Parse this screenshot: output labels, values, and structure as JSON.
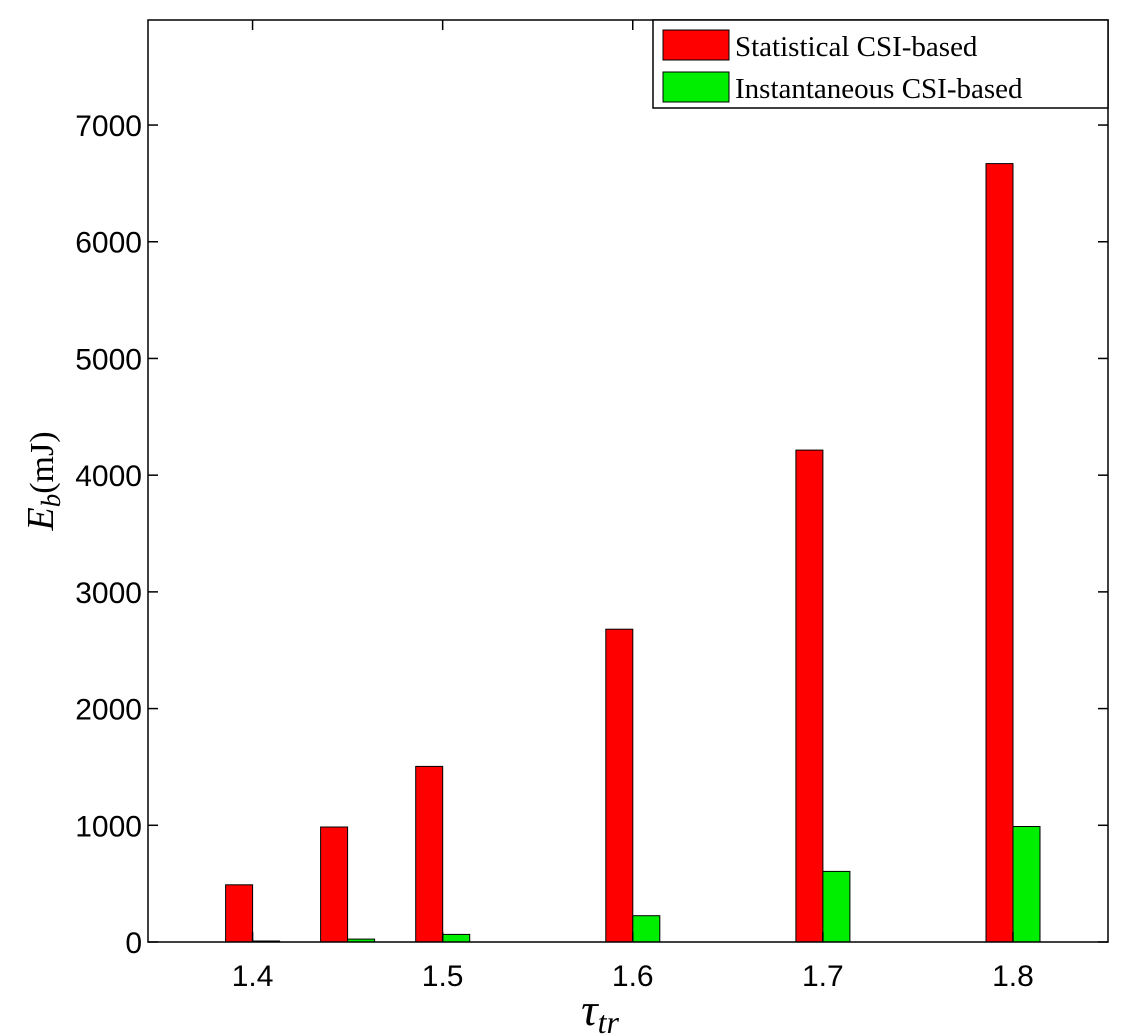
{
  "chart_data": {
    "type": "bar",
    "x_ticks": [
      1.4,
      1.5,
      1.6,
      1.7,
      1.8
    ],
    "x_tick_labels": [
      "1.4",
      "1.5",
      "1.6",
      "1.7",
      "1.8"
    ],
    "xlim": [
      1.345,
      1.85
    ],
    "ylim": [
      0,
      7900
    ],
    "y_ticks": [
      0,
      1000,
      2000,
      3000,
      4000,
      5000,
      6000,
      7000
    ],
    "y_tick_labels": [
      "0",
      "1000",
      "2000",
      "3000",
      "4000",
      "5000",
      "6000",
      "7000"
    ],
    "xlabel": {
      "main": "τ",
      "sub": "tr"
    },
    "ylabel": {
      "main": "E",
      "sub": "b",
      "unit": "(mJ)"
    },
    "grid": false,
    "legend_position": "top-right",
    "x": [
      1.4,
      1.45,
      1.5,
      1.6,
      1.7,
      1.8
    ],
    "series": [
      {
        "name": "Statistical CSI-based",
        "color": "#ff0000",
        "values": [
          490,
          985,
          1505,
          2680,
          4215,
          6670
        ]
      },
      {
        "name": "Instantaneous CSI-based",
        "color": "#00ee00",
        "values": [
          5,
          25,
          65,
          225,
          605,
          990
        ]
      }
    ]
  }
}
